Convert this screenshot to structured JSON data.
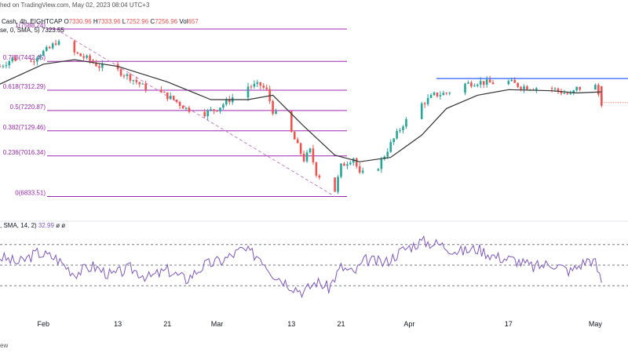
{
  "header": {
    "published_line": "hed on TradingView.com, May 02, 2023 08:04 UTC+3",
    "symbol_line": "Cash, 4h, EIGHTCAP",
    "ohlc": {
      "o_label": "O",
      "o_value": "7330.96",
      "h_label": "H",
      "h_value": "7333.96",
      "l_label": "L",
      "l_value": "7252.96",
      "c_label": "C",
      "c_value": "7256.96",
      "vol_label": "Vol",
      "vol_value": "657"
    },
    "ma_line": "se, 0, SMA, 5)",
    "ma_value": "7323.55"
  },
  "rsi_header": {
    "label": ", SMA, 14, 2)",
    "value": "32.99",
    "trail": "ø  ø"
  },
  "footer": {
    "text": "ew"
  },
  "colors": {
    "fib_line": "#9c27b0",
    "fib_label": "#9c27b0",
    "resistance": "#2962ff",
    "candle_up": "#26a69a",
    "candle_down": "#ef5350",
    "sma": "#333333",
    "rsi_line": "#7e57c2",
    "rsi_band": "#787b86",
    "axis_text": "#131722",
    "last_price_line": "#ef5350",
    "trend_dash": "#c77dcf"
  },
  "chart_data": [
    {
      "type": "candlestick",
      "title": "",
      "x": {
        "tick_labels": [
          "Feb",
          "13",
          "21",
          "Mar",
          "13",
          "21",
          "Apr",
          "17",
          "May"
        ],
        "range": [
          "2023-01-25",
          "2023-05-05"
        ]
      },
      "y": {
        "range": [
          6800,
          7560
        ]
      },
      "fibonacci_levels": [
        {
          "label": "1(7588.24)",
          "value": 7588.24
        },
        {
          "label": "0.786(7442.45)",
          "value": 7442.45
        },
        {
          "label": "0.618(7312.29)",
          "value": 7312.29
        },
        {
          "label": "0.5(7220.87)",
          "value": 7220.87
        },
        {
          "label": "0.382(7129.46)",
          "value": 7129.46
        },
        {
          "label": "0.236(7016.34)",
          "value": 7016.34
        },
        {
          "label": "0(6833.51)",
          "value": 6833.51
        }
      ],
      "resistance_level": 7365,
      "last_close": 7256.96,
      "series": [
        {
          "kind": "price",
          "points": [
            [
              "2023-01-25",
              7420
            ],
            [
              "2023-01-27",
              7455
            ],
            [
              "2023-01-30",
              7440
            ],
            [
              "2023-01-31",
              7470
            ],
            [
              "2023-02-02",
              7500
            ],
            [
              "2023-02-03",
              7530
            ],
            [
              "2023-02-06",
              7480
            ],
            [
              "2023-02-08",
              7455
            ],
            [
              "2023-02-10",
              7420
            ],
            [
              "2023-02-13",
              7400
            ],
            [
              "2023-02-15",
              7370
            ],
            [
              "2023-02-17",
              7330
            ],
            [
              "2023-02-20",
              7300
            ],
            [
              "2023-02-22",
              7270
            ],
            [
              "2023-02-24",
              7230
            ],
            [
              "2023-02-27",
              7210
            ],
            [
              "2023-03-01",
              7230
            ],
            [
              "2023-03-03",
              7270
            ],
            [
              "2023-03-06",
              7330
            ],
            [
              "2023-03-08",
              7335
            ],
            [
              "2023-03-09",
              7310
            ],
            [
              "2023-03-10",
              7220
            ],
            [
              "2023-03-13",
              7120
            ],
            [
              "2023-03-15",
              7000
            ],
            [
              "2023-03-16",
              7040
            ],
            [
              "2023-03-17",
              6940
            ],
            [
              "2023-03-20",
              6860
            ],
            [
              "2023-03-21",
              6970
            ],
            [
              "2023-03-23",
              7010
            ],
            [
              "2023-03-24",
              6930
            ],
            [
              "2023-03-27",
              6970
            ],
            [
              "2023-03-29",
              7070
            ],
            [
              "2023-03-31",
              7160
            ],
            [
              "2023-04-03",
              7250
            ],
            [
              "2023-04-05",
              7290
            ],
            [
              "2023-04-07",
              7300
            ],
            [
              "2023-04-10",
              7340
            ],
            [
              "2023-04-12",
              7350
            ],
            [
              "2023-04-14",
              7345
            ],
            [
              "2023-04-17",
              7350
            ],
            [
              "2023-04-19",
              7330
            ],
            [
              "2023-04-21",
              7325
            ],
            [
              "2023-04-24",
              7320
            ],
            [
              "2023-04-26",
              7300
            ],
            [
              "2023-04-27",
              7290
            ],
            [
              "2023-04-28",
              7320
            ],
            [
              "2023-05-01",
              7330
            ],
            [
              "2023-05-02",
              7256.96
            ]
          ]
        },
        {
          "kind": "sma",
          "name": "",
          "points": [
            [
              "2023-01-25",
              7340
            ],
            [
              "2023-02-01",
              7430
            ],
            [
              "2023-02-06",
              7450
            ],
            [
              "2023-02-13",
              7420
            ],
            [
              "2023-02-21",
              7350
            ],
            [
              "2023-02-28",
              7270
            ],
            [
              "2023-03-06",
              7270
            ],
            [
              "2023-03-10",
              7290
            ],
            [
              "2023-03-15",
              7150
            ],
            [
              "2023-03-20",
              7020
            ],
            [
              "2023-03-24",
              6990
            ],
            [
              "2023-03-29",
              7010
            ],
            [
              "2023-04-03",
              7110
            ],
            [
              "2023-04-07",
              7230
            ],
            [
              "2023-04-12",
              7290
            ],
            [
              "2023-04-17",
              7315
            ],
            [
              "2023-04-24",
              7310
            ],
            [
              "2023-04-28",
              7300
            ],
            [
              "2023-05-02",
              7305
            ]
          ]
        }
      ]
    },
    {
      "type": "line",
      "title": "",
      "y": {
        "range": [
          20,
          80
        ],
        "bands": [
          70,
          50,
          30
        ]
      },
      "series": [
        {
          "kind": "rsi",
          "name": "",
          "points": [
            [
              "2023-01-25",
              58
            ],
            [
              "2023-01-28",
              52
            ],
            [
              "2023-01-31",
              62
            ],
            [
              "2023-02-03",
              57
            ],
            [
              "2023-02-06",
              42
            ],
            [
              "2023-02-09",
              49
            ],
            [
              "2023-02-12",
              40
            ],
            [
              "2023-02-15",
              47
            ],
            [
              "2023-02-18",
              38
            ],
            [
              "2023-02-21",
              45
            ],
            [
              "2023-02-24",
              36
            ],
            [
              "2023-02-27",
              50
            ],
            [
              "2023-03-02",
              55
            ],
            [
              "2023-03-05",
              65
            ],
            [
              "2023-03-08",
              58
            ],
            [
              "2023-03-10",
              42
            ],
            [
              "2023-03-13",
              30
            ],
            [
              "2023-03-15",
              24
            ],
            [
              "2023-03-17",
              34
            ],
            [
              "2023-03-19",
              28
            ],
            [
              "2023-03-21",
              48
            ],
            [
              "2023-03-23",
              42
            ],
            [
              "2023-03-25",
              55
            ],
            [
              "2023-03-28",
              52
            ],
            [
              "2023-03-31",
              65
            ],
            [
              "2023-04-03",
              73
            ],
            [
              "2023-04-06",
              70
            ],
            [
              "2023-04-09",
              63
            ],
            [
              "2023-04-12",
              66
            ],
            [
              "2023-04-15",
              58
            ],
            [
              "2023-04-18",
              55
            ],
            [
              "2023-04-21",
              48
            ],
            [
              "2023-04-24",
              52
            ],
            [
              "2023-04-27",
              44
            ],
            [
              "2023-04-30",
              56
            ],
            [
              "2023-05-01",
              52
            ],
            [
              "2023-05-02",
              32.99
            ]
          ]
        }
      ]
    }
  ]
}
